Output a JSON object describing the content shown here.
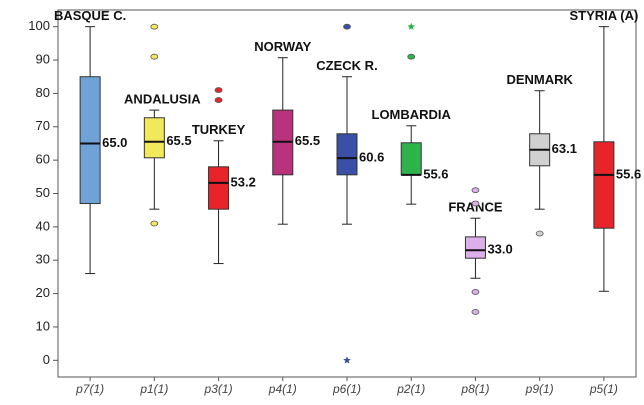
{
  "chart_data": {
    "type": "box",
    "categories": [
      "p7(1)",
      "p1(1)",
      "p3(1)",
      "p4(1)",
      "p6(1)",
      "p2(1)",
      "p8(1)",
      "p9(1)",
      "p5(1)"
    ],
    "ylim": [
      -5,
      105
    ],
    "yticks": [
      0,
      10,
      20,
      30,
      40,
      50,
      60,
      70,
      80,
      90,
      100
    ],
    "boxes": [
      {
        "label": "BASQUE C.",
        "color": "#6fa3d8",
        "whisker_low": 26,
        "q1": 47,
        "median": 65,
        "median_label": "65.0",
        "q3": 85,
        "whisker_high": 100,
        "outliers": []
      },
      {
        "label": "ANDALUSIA",
        "color": "#f2e85c",
        "whisker_low": 45.3,
        "q1": 60.7,
        "median": 65.5,
        "median_label": "65.5",
        "q3": 72.7,
        "whisker_high": 75,
        "outliers": [
          {
            "value": 100,
            "marker": "circle"
          },
          {
            "value": 91,
            "marker": "circle"
          },
          {
            "value": 41,
            "marker": "circle"
          }
        ]
      },
      {
        "label": "TURKEY",
        "color": "#e8242b",
        "whisker_low": 29,
        "q1": 45.3,
        "median": 53.2,
        "median_label": "53.2",
        "q3": 58,
        "whisker_high": 65.8,
        "outliers": [
          {
            "value": 81,
            "marker": "circle"
          },
          {
            "value": 78,
            "marker": "circle"
          }
        ]
      },
      {
        "label": "NORWAY",
        "color": "#b8327c",
        "whisker_low": 40.8,
        "q1": 55.6,
        "median": 65.5,
        "median_label": "65.5",
        "q3": 75,
        "whisker_high": 90.7,
        "outliers": []
      },
      {
        "label": "CZECK R.",
        "color": "#3a4fa6",
        "whisker_low": 40.8,
        "q1": 55.6,
        "median": 60.6,
        "median_label": "60.6",
        "q3": 67.9,
        "whisker_high": 85,
        "outliers": [
          {
            "value": 100,
            "marker": "circle"
          },
          {
            "value": 0,
            "marker": "star"
          }
        ]
      },
      {
        "label": "LOMBARDIA",
        "color": "#2db34a",
        "whisker_low": 46.8,
        "q1": 55.6,
        "median": 55.6,
        "median_label": "55.6",
        "q3": 65.2,
        "whisker_high": 70.3,
        "outliers": [
          {
            "value": 100,
            "marker": "star"
          },
          {
            "value": 91,
            "marker": "circle"
          }
        ]
      },
      {
        "label": "FRANCE",
        "color": "#dcaeea",
        "whisker_low": 24.6,
        "q1": 30.6,
        "median": 33,
        "median_label": "33.0",
        "q3": 37,
        "whisker_high": 42.6,
        "outliers": [
          {
            "value": 51,
            "marker": "circle"
          },
          {
            "value": 47,
            "marker": "circle"
          },
          {
            "value": 20.5,
            "marker": "circle"
          },
          {
            "value": 14.5,
            "marker": "circle"
          }
        ]
      },
      {
        "label": "DENMARK",
        "color": "#d0d0d0",
        "whisker_low": 45.3,
        "q1": 58.3,
        "median": 63.1,
        "median_label": "63.1",
        "q3": 67.9,
        "whisker_high": 80.8,
        "outliers": [
          {
            "value": 38,
            "marker": "circle"
          }
        ]
      },
      {
        "label": "STYRIA (A)",
        "color": "#e8242b",
        "whisker_low": 20.7,
        "q1": 39.6,
        "median": 55.6,
        "median_label": "55.6",
        "q3": 65.5,
        "whisker_high": 100,
        "outliers": []
      }
    ]
  }
}
